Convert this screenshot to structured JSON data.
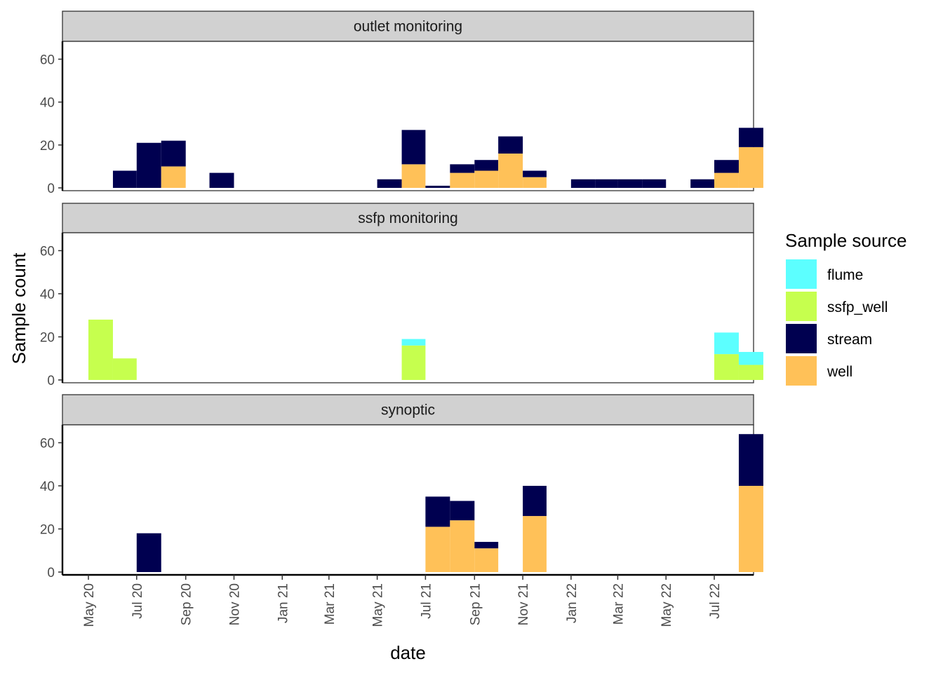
{
  "chart_data": {
    "type": "bar",
    "stacked": true,
    "xlabel": "date",
    "ylabel": "Sample count",
    "ylim": [
      0,
      67
    ],
    "y_ticks": [
      0,
      20,
      40,
      60
    ],
    "x_tick_labels": [
      "May 20",
      "Jul 20",
      "Sep 20",
      "Nov 20",
      "Jan 21",
      "Mar 21",
      "May 21",
      "Jul 21",
      "Sep 21",
      "Nov 21",
      "Jan 22",
      "Mar 22",
      "May 22",
      "Jul 22"
    ],
    "bin_width_months": 1,
    "legend": {
      "title": "Sample source",
      "placement": "right",
      "entries": [
        {
          "name": "flume",
          "color": "#5CFFFF"
        },
        {
          "name": "ssfp_well",
          "color": "#C6FF4E"
        },
        {
          "name": "stream",
          "color": "#000050"
        },
        {
          "name": "well",
          "color": "#FFC158"
        }
      ]
    },
    "panels": [
      {
        "title": "outlet monitoring",
        "bins": [
          {
            "start": "2020-06",
            "stream": 8
          },
          {
            "start": "2020-07",
            "stream": 21
          },
          {
            "start": "2020-08",
            "well": 10,
            "stream": 12
          },
          {
            "start": "2020-10",
            "stream": 7
          },
          {
            "start": "2021-05",
            "stream": 4
          },
          {
            "start": "2021-06",
            "well": 11,
            "stream": 16
          },
          {
            "start": "2021-07",
            "stream": 1
          },
          {
            "start": "2021-08",
            "well": 7,
            "stream": 4
          },
          {
            "start": "2021-09",
            "well": 8,
            "stream": 5
          },
          {
            "start": "2021-10",
            "well": 16,
            "stream": 8
          },
          {
            "start": "2021-11",
            "well": 5,
            "stream": 3
          },
          {
            "start": "2022-01",
            "stream": 4
          },
          {
            "start": "2022-02",
            "stream": 4
          },
          {
            "start": "2022-03",
            "stream": 4
          },
          {
            "start": "2022-04",
            "stream": 4
          },
          {
            "start": "2022-06",
            "stream": 4
          },
          {
            "start": "2022-07",
            "well": 7,
            "stream": 6
          },
          {
            "start": "2022-08",
            "well": 19,
            "stream": 9
          }
        ]
      },
      {
        "title": "ssfp monitoring",
        "bins": [
          {
            "start": "2020-05",
            "ssfp_well": 28
          },
          {
            "start": "2020-06",
            "ssfp_well": 10
          },
          {
            "start": "2021-06",
            "ssfp_well": 16,
            "flume": 3
          },
          {
            "start": "2022-07",
            "ssfp_well": 12,
            "flume": 10
          },
          {
            "start": "2022-08",
            "ssfp_well": 7,
            "flume": 6
          }
        ]
      },
      {
        "title": "synoptic",
        "bins": [
          {
            "start": "2020-07",
            "stream": 18
          },
          {
            "start": "2021-07",
            "well": 21,
            "stream": 14
          },
          {
            "start": "2021-08",
            "well": 24,
            "stream": 9
          },
          {
            "start": "2021-09",
            "well": 11,
            "stream": 3
          },
          {
            "start": "2021-11",
            "well": 26,
            "stream": 14
          },
          {
            "start": "2022-08",
            "well": 40,
            "stream": 24
          }
        ]
      }
    ]
  }
}
